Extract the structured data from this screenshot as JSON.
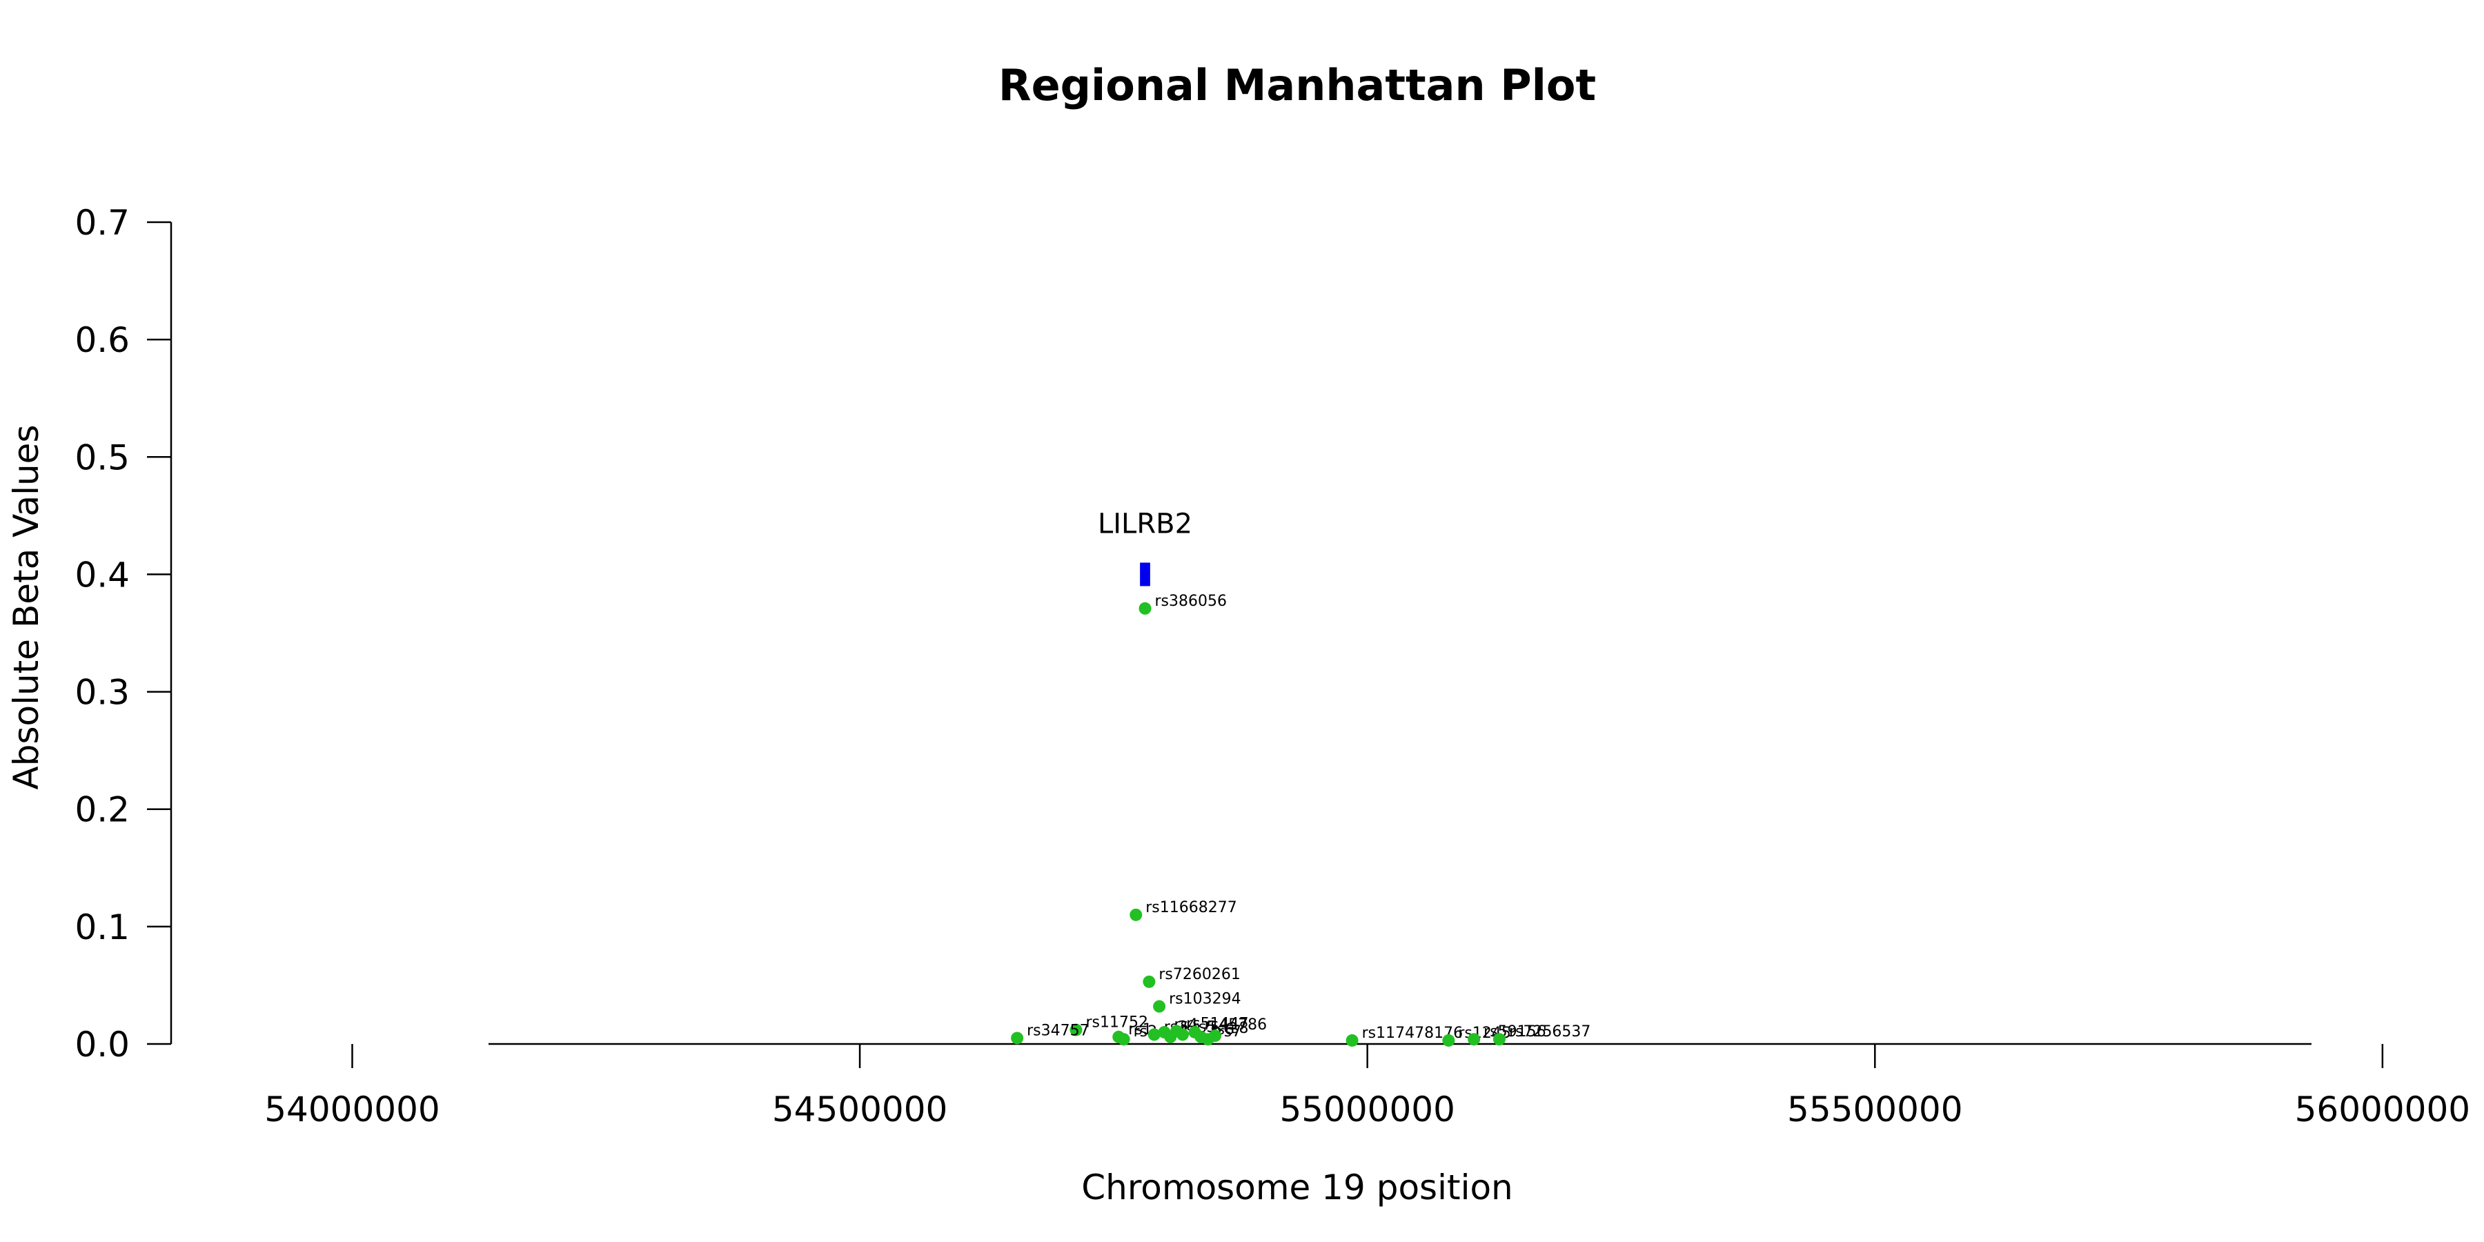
{
  "chart_data": {
    "type": "scatter",
    "title": "Regional Manhattan Plot",
    "xlabel": "Chromosome 19 position",
    "ylabel": "Absolute Beta Values",
    "xlim": [
      53653000,
      56100000
    ],
    "ylim": [
      0,
      0.7
    ],
    "x_ticks": [
      54000000,
      54500000,
      55000000,
      55500000,
      56000000
    ],
    "x_tick_labels": [
      "54000000",
      "54500000",
      "55000000",
      "55500000",
      "56000000"
    ],
    "y_ticks": [
      0,
      0.1,
      0.2,
      0.3,
      0.4,
      0.5,
      0.6,
      0.7
    ],
    "y_tick_labels": [
      "0.0",
      "0.1",
      "0.2",
      "0.3",
      "0.4",
      "0.5",
      "0.6",
      "0.7"
    ],
    "grid": false,
    "point_color": "#22c022",
    "gene_color": "#0000ee",
    "points": [
      {
        "label": "rs386056",
        "x": 54781000,
        "y": 0.371
      },
      {
        "label": "rs11668277",
        "x": 54772000,
        "y": 0.11
      },
      {
        "label": "rs7260261",
        "x": 54785000,
        "y": 0.053
      },
      {
        "label": "rs103294",
        "x": 54795000,
        "y": 0.032
      },
      {
        "label": "rs11752",
        "x": 54713000,
        "y": 0.012
      },
      {
        "label": "rs34757",
        "x": 54655000,
        "y": 0.005
      },
      {
        "label": "rs1",
        "x": 54755000,
        "y": 0.006
      },
      {
        "label": "rs2",
        "x": 54760000,
        "y": 0.004
      },
      {
        "label": "rs3",
        "x": 54790000,
        "y": 0.008
      },
      {
        "label": "rs4",
        "x": 54800000,
        "y": 0.01
      },
      {
        "label": "rs",
        "x": 54806000,
        "y": 0.006
      },
      {
        "label": "rs51447",
        "x": 54812000,
        "y": 0.011
      },
      {
        "label": "rs5",
        "x": 54818000,
        "y": 0.008
      },
      {
        "label": "rs45786",
        "x": 54830000,
        "y": 0.01
      },
      {
        "label": "rs6",
        "x": 54836000,
        "y": 0.006
      },
      {
        "label": "rs7",
        "x": 54843000,
        "y": 0.004
      },
      {
        "label": "rs8",
        "x": 54850000,
        "y": 0.007
      },
      {
        "label": "rs117478176",
        "x": 54985000,
        "y": 0.003
      },
      {
        "label": "rs1245",
        "x": 55080000,
        "y": 0.003
      },
      {
        "label": "rs59156",
        "x": 55105000,
        "y": 0.004
      },
      {
        "label": "rs7256537",
        "x": 55130000,
        "y": 0.004
      }
    ],
    "gene": {
      "name": "LILRB2",
      "start": 54776000,
      "end": 54786000,
      "y": 0.4
    }
  }
}
